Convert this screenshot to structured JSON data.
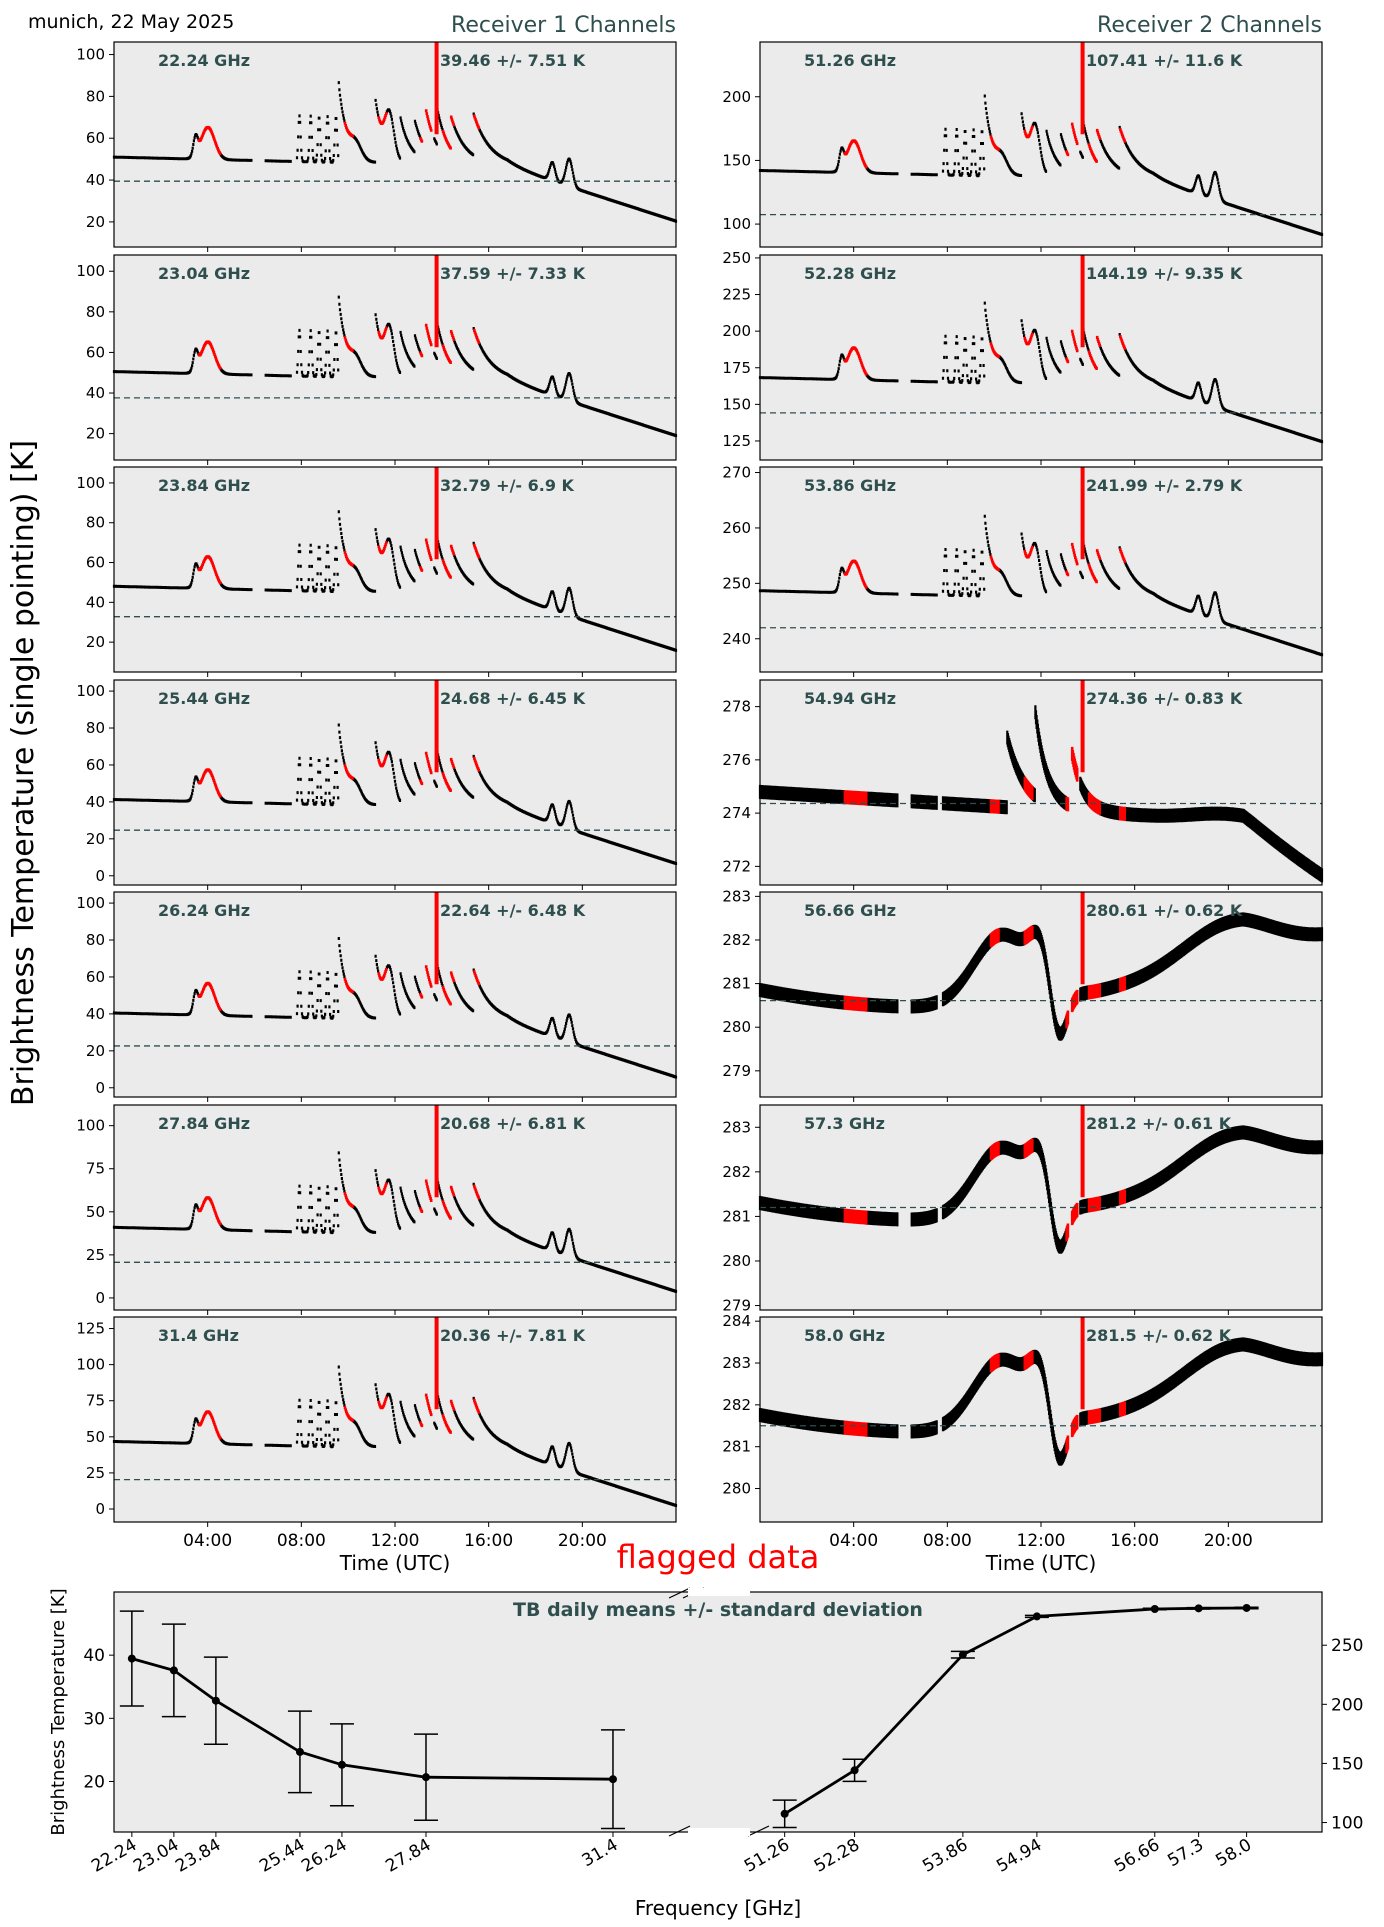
{
  "header": {
    "location_date": "munich, 22 May 2025",
    "receiver1_title": "Receiver 1 Channels",
    "receiver2_title": "Receiver 2 Channels"
  },
  "ylabel_main": "Brightness Temperature (single pointing) [K]",
  "xlabel_time": "Time (UTC)",
  "time_ticks": [
    "04:00",
    "08:00",
    "12:00",
    "16:00",
    "20:00"
  ],
  "flagged_label": "flagged data",
  "colors": {
    "panel_bg": "#ebebeb",
    "data": "#000000",
    "flagged": "#ff0000",
    "mean_line": "#2f4f4f",
    "text_dark": "#2f4f4f"
  },
  "chart_data": [
    {
      "type": "line",
      "receiver": 1,
      "channel": "22.24 GHz",
      "stat": "39.46 +/- 7.51 K",
      "mean": 39.46,
      "ylim": [
        8,
        106
      ],
      "yticks": [
        20,
        40,
        60,
        80,
        100
      ],
      "shape": "low"
    },
    {
      "type": "line",
      "receiver": 1,
      "channel": "23.04 GHz",
      "stat": "37.59 +/- 7.33 K",
      "mean": 37.59,
      "ylim": [
        7,
        108
      ],
      "yticks": [
        20,
        40,
        60,
        80,
        100
      ],
      "shape": "low"
    },
    {
      "type": "line",
      "receiver": 1,
      "channel": "23.84 GHz",
      "stat": "32.79 +/- 6.9 K",
      "mean": 32.79,
      "ylim": [
        5,
        108
      ],
      "yticks": [
        20,
        40,
        60,
        80,
        100
      ],
      "shape": "low"
    },
    {
      "type": "line",
      "receiver": 1,
      "channel": "25.44 GHz",
      "stat": "24.68 +/- 6.45 K",
      "mean": 24.68,
      "ylim": [
        -5,
        106
      ],
      "yticks": [
        0,
        20,
        40,
        60,
        80,
        100
      ],
      "shape": "low"
    },
    {
      "type": "line",
      "receiver": 1,
      "channel": "26.24 GHz",
      "stat": "22.64 +/- 6.48 K",
      "mean": 22.64,
      "ylim": [
        -5,
        106
      ],
      "yticks": [
        0,
        20,
        40,
        60,
        80,
        100
      ],
      "shape": "low"
    },
    {
      "type": "line",
      "receiver": 1,
      "channel": "27.84 GHz",
      "stat": "20.68 +/- 6.81 K",
      "mean": 20.68,
      "ylim": [
        -7,
        112
      ],
      "yticks": [
        0,
        25,
        50,
        75,
        100
      ],
      "shape": "low"
    },
    {
      "type": "line",
      "receiver": 1,
      "channel": "31.4 GHz",
      "stat": "20.36 +/- 7.81 K",
      "mean": 20.36,
      "ylim": [
        -9,
        133
      ],
      "yticks": [
        0,
        25,
        50,
        75,
        100,
        125
      ],
      "shape": "low"
    },
    {
      "type": "line",
      "receiver": 2,
      "channel": "51.26 GHz",
      "stat": "107.41 +/- 11.6 K",
      "mean": 107.41,
      "ylim": [
        82,
        243
      ],
      "yticks": [
        100,
        150,
        200
      ],
      "shape": "high"
    },
    {
      "type": "line",
      "receiver": 2,
      "channel": "52.28 GHz",
      "stat": "144.19 +/- 9.35 K",
      "mean": 144.19,
      "ylim": [
        112,
        252
      ],
      "yticks": [
        125,
        150,
        175,
        200,
        225,
        250
      ],
      "shape": "high"
    },
    {
      "type": "line",
      "receiver": 2,
      "channel": "53.86 GHz",
      "stat": "241.99 +/- 2.79 K",
      "mean": 241.99,
      "ylim": [
        234,
        271
      ],
      "yticks": [
        240,
        250,
        260,
        270
      ],
      "shape": "mid"
    },
    {
      "type": "line",
      "receiver": 2,
      "channel": "54.94 GHz",
      "stat": "274.36 +/- 0.83 K",
      "mean": 274.36,
      "ylim": [
        271.3,
        279
      ],
      "yticks": [
        272,
        274,
        276,
        278
      ],
      "shape": "opaque54"
    },
    {
      "type": "line",
      "receiver": 2,
      "channel": "56.66 GHz",
      "stat": "280.61 +/- 0.62 K",
      "mean": 280.61,
      "ylim": [
        278.4,
        283.1
      ],
      "yticks": [
        279,
        280,
        281,
        282,
        283
      ],
      "shape": "opaque"
    },
    {
      "type": "line",
      "receiver": 2,
      "channel": "57.3 GHz",
      "stat": "281.2 +/- 0.61 K",
      "mean": 281.2,
      "ylim": [
        278.9,
        283.5
      ],
      "yticks": [
        279,
        280,
        281,
        282,
        283
      ],
      "shape": "opaque"
    },
    {
      "type": "line",
      "receiver": 2,
      "channel": "58.0 GHz",
      "stat": "281.5 +/- 0.62 K",
      "mean": 281.5,
      "ylim": [
        279.2,
        284.1
      ],
      "yticks": [
        280,
        281,
        282,
        283,
        284
      ],
      "shape": "opaque"
    },
    {
      "type": "line",
      "title": "TB daily means +/- standard deviation",
      "xlabel": "Frequency [GHz]",
      "ylabel": "Brightness Temperature [K]",
      "receiver1": {
        "x": [
          22.24,
          23.04,
          23.84,
          25.44,
          26.24,
          27.84,
          31.4
        ],
        "y": [
          39.46,
          37.59,
          32.79,
          24.68,
          22.64,
          20.68,
          20.36
        ],
        "err": [
          7.51,
          7.33,
          6.9,
          6.45,
          6.48,
          6.81,
          7.81
        ],
        "xlim": [
          21.9,
          32.6
        ],
        "ylim": [
          12,
          50
        ],
        "yticks": [
          20,
          30,
          40
        ]
      },
      "receiver2": {
        "x": [
          51.26,
          52.28,
          53.86,
          54.94,
          56.66,
          57.3,
          58.0
        ],
        "y": [
          107.41,
          144.19,
          241.99,
          274.36,
          280.61,
          281.2,
          281.5
        ],
        "err": [
          11.6,
          9.35,
          2.79,
          0.83,
          0.62,
          0.61,
          0.62
        ],
        "xlim": [
          50.9,
          59.1
        ],
        "ylim": [
          92,
          295
        ],
        "yticks": [
          100,
          150,
          200,
          250
        ]
      },
      "xtick_labels": [
        "22.24",
        "23.04",
        "23.84",
        "25.44",
        "26.24",
        "27.84",
        "31.4",
        "51.26",
        "52.28",
        "53.86",
        "54.94",
        "56.66",
        "57.3",
        "58.0"
      ]
    }
  ]
}
